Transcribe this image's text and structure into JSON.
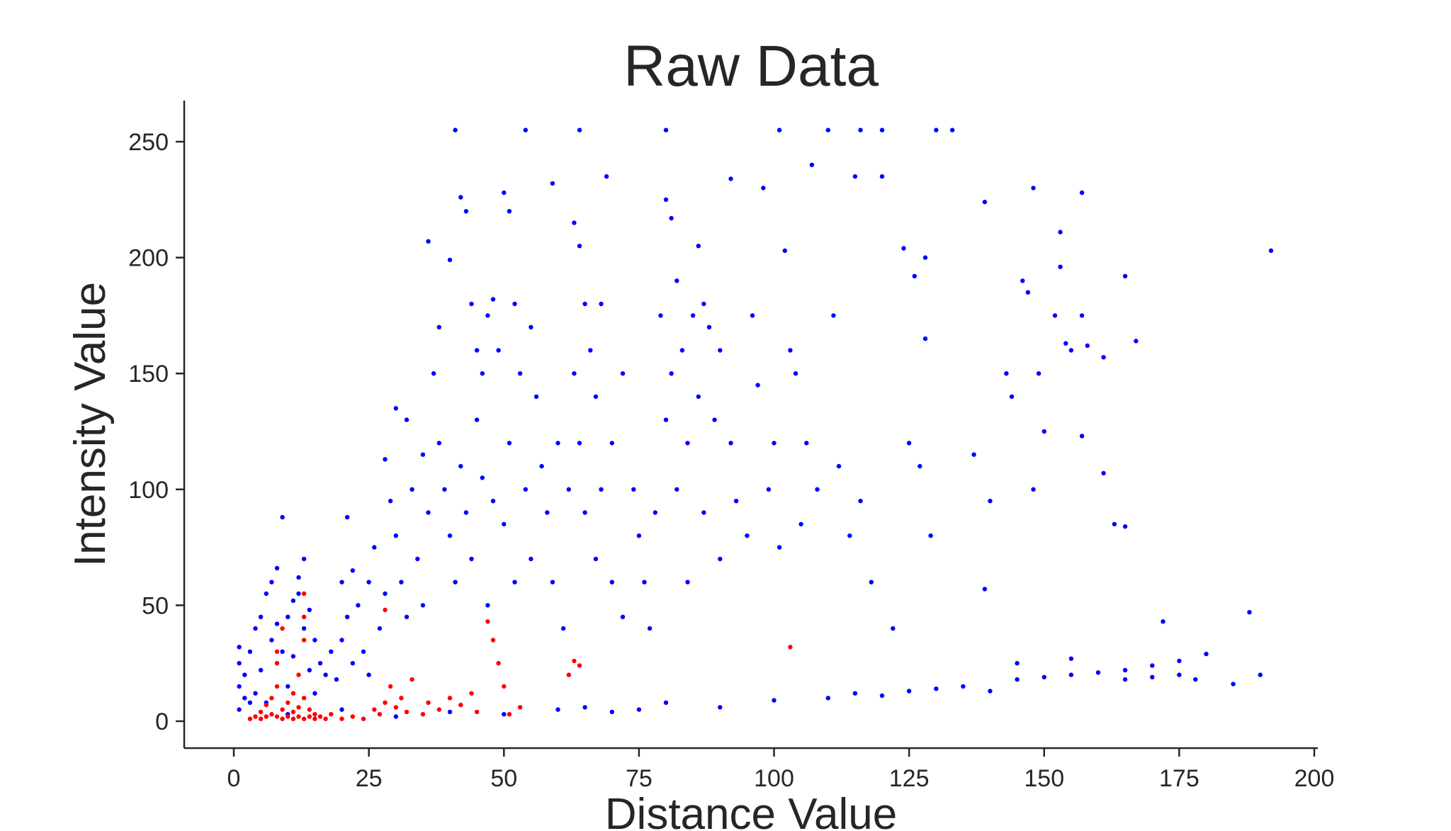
{
  "chart_data": {
    "type": "scatter",
    "title": "Raw Data",
    "xlabel": "Distance Value",
    "ylabel": "Intensity Value",
    "xlim": [
      -9,
      201
    ],
    "ylim": [
      -12,
      268
    ],
    "x_ticks": [
      0,
      25,
      50,
      75,
      100,
      125,
      150,
      175,
      200
    ],
    "y_ticks": [
      0,
      50,
      100,
      150,
      200,
      250
    ],
    "x_tick_labels": [
      "0",
      "25",
      "50",
      "75",
      "100",
      "125",
      "150",
      "175",
      "200"
    ],
    "y_tick_labels": [
      "0",
      "50",
      "100",
      "150",
      "200",
      "250"
    ],
    "grid": false,
    "legend": "none",
    "colors": {
      "series_blue": "#0000ff",
      "series_red": "#ff0000",
      "axis": "#262626"
    },
    "series": [
      {
        "name": "blue",
        "color": "#0000ff",
        "note": "dense point cloud; representative sample of visible points (distance, intensity)",
        "points": [
          [
            1,
            5
          ],
          [
            1,
            15
          ],
          [
            1,
            25
          ],
          [
            1,
            32
          ],
          [
            2,
            10
          ],
          [
            2,
            20
          ],
          [
            3,
            8
          ],
          [
            3,
            30
          ],
          [
            4,
            40
          ],
          [
            4,
            12
          ],
          [
            5,
            45
          ],
          [
            5,
            22
          ],
          [
            6,
            55
          ],
          [
            6,
            8
          ],
          [
            7,
            60
          ],
          [
            7,
            35
          ],
          [
            8,
            66
          ],
          [
            8,
            42
          ],
          [
            9,
            88
          ],
          [
            9,
            30
          ],
          [
            10,
            45
          ],
          [
            10,
            15
          ],
          [
            11,
            52
          ],
          [
            11,
            28
          ],
          [
            12,
            55
          ],
          [
            12,
            62
          ],
          [
            13,
            70
          ],
          [
            13,
            40
          ],
          [
            14,
            48
          ],
          [
            14,
            22
          ],
          [
            15,
            35
          ],
          [
            15,
            12
          ],
          [
            16,
            25
          ],
          [
            17,
            20
          ],
          [
            18,
            30
          ],
          [
            19,
            18
          ],
          [
            20,
            60
          ],
          [
            20,
            35
          ],
          [
            21,
            88
          ],
          [
            21,
            45
          ],
          [
            22,
            65
          ],
          [
            22,
            25
          ],
          [
            23,
            50
          ],
          [
            24,
            30
          ],
          [
            25,
            60
          ],
          [
            25,
            20
          ],
          [
            26,
            75
          ],
          [
            27,
            40
          ],
          [
            28,
            113
          ],
          [
            28,
            55
          ],
          [
            29,
            95
          ],
          [
            30,
            135
          ],
          [
            30,
            80
          ],
          [
            31,
            60
          ],
          [
            32,
            130
          ],
          [
            32,
            45
          ],
          [
            33,
            100
          ],
          [
            34,
            70
          ],
          [
            35,
            115
          ],
          [
            35,
            50
          ],
          [
            36,
            207
          ],
          [
            36,
            90
          ],
          [
            37,
            150
          ],
          [
            38,
            170
          ],
          [
            38,
            120
          ],
          [
            39,
            100
          ],
          [
            40,
            199
          ],
          [
            40,
            80
          ],
          [
            41,
            255
          ],
          [
            41,
            60
          ],
          [
            42,
            226
          ],
          [
            42,
            110
          ],
          [
            43,
            220
          ],
          [
            43,
            90
          ],
          [
            44,
            180
          ],
          [
            44,
            70
          ],
          [
            45,
            160
          ],
          [
            45,
            130
          ],
          [
            46,
            150
          ],
          [
            46,
            105
          ],
          [
            47,
            175
          ],
          [
            47,
            50
          ],
          [
            48,
            182
          ],
          [
            48,
            95
          ],
          [
            49,
            160
          ],
          [
            50,
            228
          ],
          [
            50,
            85
          ],
          [
            51,
            220
          ],
          [
            51,
            120
          ],
          [
            52,
            180
          ],
          [
            52,
            60
          ],
          [
            53,
            150
          ],
          [
            54,
            255
          ],
          [
            54,
            100
          ],
          [
            55,
            170
          ],
          [
            55,
            70
          ],
          [
            56,
            140
          ],
          [
            57,
            110
          ],
          [
            58,
            90
          ],
          [
            59,
            232
          ],
          [
            59,
            60
          ],
          [
            60,
            120
          ],
          [
            61,
            40
          ],
          [
            62,
            100
          ],
          [
            63,
            215
          ],
          [
            63,
            150
          ],
          [
            64,
            205
          ],
          [
            64,
            255
          ],
          [
            64,
            120
          ],
          [
            65,
            180
          ],
          [
            65,
            90
          ],
          [
            66,
            160
          ],
          [
            67,
            140
          ],
          [
            67,
            70
          ],
          [
            68,
            180
          ],
          [
            68,
            100
          ],
          [
            69,
            235
          ],
          [
            70,
            120
          ],
          [
            70,
            60
          ],
          [
            72,
            150
          ],
          [
            72,
            45
          ],
          [
            74,
            100
          ],
          [
            75,
            80
          ],
          [
            76,
            60
          ],
          [
            77,
            40
          ],
          [
            78,
            90
          ],
          [
            79,
            175
          ],
          [
            80,
            225
          ],
          [
            80,
            255
          ],
          [
            80,
            130
          ],
          [
            81,
            217
          ],
          [
            81,
            150
          ],
          [
            82,
            190
          ],
          [
            82,
            100
          ],
          [
            83,
            160
          ],
          [
            84,
            120
          ],
          [
            84,
            60
          ],
          [
            85,
            175
          ],
          [
            86,
            205
          ],
          [
            86,
            140
          ],
          [
            87,
            180
          ],
          [
            87,
            90
          ],
          [
            88,
            170
          ],
          [
            89,
            130
          ],
          [
            90,
            160
          ],
          [
            90,
            70
          ],
          [
            92,
            120
          ],
          [
            92,
            234
          ],
          [
            93,
            95
          ],
          [
            95,
            80
          ],
          [
            96,
            175
          ],
          [
            97,
            145
          ],
          [
            98,
            230
          ],
          [
            99,
            100
          ],
          [
            100,
            120
          ],
          [
            101,
            255
          ],
          [
            101,
            75
          ],
          [
            102,
            203
          ],
          [
            103,
            160
          ],
          [
            104,
            150
          ],
          [
            105,
            85
          ],
          [
            106,
            120
          ],
          [
            107,
            240
          ],
          [
            108,
            100
          ],
          [
            110,
            255
          ],
          [
            111,
            175
          ],
          [
            112,
            110
          ],
          [
            114,
            80
          ],
          [
            115,
            235
          ],
          [
            116,
            255
          ],
          [
            116,
            95
          ],
          [
            118,
            60
          ],
          [
            120,
            235
          ],
          [
            120,
            255
          ],
          [
            122,
            40
          ],
          [
            124,
            204
          ],
          [
            125,
            120
          ],
          [
            126,
            192
          ],
          [
            127,
            110
          ],
          [
            128,
            200
          ],
          [
            128,
            165
          ],
          [
            129,
            80
          ],
          [
            130,
            255
          ],
          [
            133,
            255
          ],
          [
            137,
            115
          ],
          [
            139,
            57
          ],
          [
            139,
            224
          ],
          [
            140,
            95
          ],
          [
            143,
            150
          ],
          [
            144,
            140
          ],
          [
            146,
            190
          ],
          [
            147,
            185
          ],
          [
            148,
            230
          ],
          [
            148,
            100
          ],
          [
            149,
            150
          ],
          [
            150,
            125
          ],
          [
            152,
            175
          ],
          [
            153,
            211
          ],
          [
            153,
            196
          ],
          [
            154,
            163
          ],
          [
            155,
            160
          ],
          [
            157,
            228
          ],
          [
            157,
            175
          ],
          [
            157,
            123
          ],
          [
            158,
            162
          ],
          [
            161,
            157
          ],
          [
            161,
            107
          ],
          [
            163,
            85
          ],
          [
            165,
            192
          ],
          [
            165,
            84
          ],
          [
            167,
            164
          ],
          [
            172,
            43
          ],
          [
            175,
            26
          ],
          [
            178,
            18
          ],
          [
            180,
            29
          ],
          [
            185,
            16
          ],
          [
            188,
            47
          ],
          [
            190,
            20
          ],
          [
            192,
            203
          ],
          [
            10,
            3
          ],
          [
            20,
            5
          ],
          [
            30,
            2
          ],
          [
            40,
            4
          ],
          [
            50,
            3
          ],
          [
            60,
            5
          ],
          [
            65,
            6
          ],
          [
            70,
            4
          ],
          [
            75,
            5
          ],
          [
            80,
            8
          ],
          [
            90,
            6
          ],
          [
            100,
            9
          ],
          [
            110,
            10
          ],
          [
            115,
            12
          ],
          [
            120,
            11
          ],
          [
            125,
            13
          ],
          [
            130,
            14
          ],
          [
            135,
            15
          ],
          [
            140,
            13
          ],
          [
            145,
            18
          ],
          [
            150,
            19
          ],
          [
            155,
            20
          ],
          [
            160,
            21
          ],
          [
            165,
            22
          ],
          [
            170,
            19
          ],
          [
            175,
            20
          ],
          [
            145,
            25
          ],
          [
            155,
            27
          ],
          [
            165,
            18
          ],
          [
            170,
            24
          ]
        ]
      },
      {
        "name": "red",
        "color": "#ff0000",
        "note": "subset highlighted in red, concentrated at low distance / low intensity",
        "points": [
          [
            3,
            1
          ],
          [
            4,
            2
          ],
          [
            5,
            1
          ],
          [
            5,
            4
          ],
          [
            6,
            2
          ],
          [
            6,
            7
          ],
          [
            7,
            3
          ],
          [
            7,
            10
          ],
          [
            8,
            2
          ],
          [
            8,
            15
          ],
          [
            8,
            25
          ],
          [
            8,
            30
          ],
          [
            9,
            1
          ],
          [
            9,
            5
          ],
          [
            9,
            40
          ],
          [
            10,
            2
          ],
          [
            10,
            8
          ],
          [
            11,
            1
          ],
          [
            11,
            4
          ],
          [
            11,
            12
          ],
          [
            12,
            2
          ],
          [
            12,
            6
          ],
          [
            12,
            20
          ],
          [
            13,
            1
          ],
          [
            13,
            10
          ],
          [
            13,
            35
          ],
          [
            13,
            55
          ],
          [
            13,
            45
          ],
          [
            14,
            2
          ],
          [
            14,
            5
          ],
          [
            15,
            1
          ],
          [
            15,
            3
          ],
          [
            16,
            2
          ],
          [
            17,
            1
          ],
          [
            18,
            3
          ],
          [
            20,
            1
          ],
          [
            22,
            2
          ],
          [
            24,
            1
          ],
          [
            26,
            5
          ],
          [
            27,
            3
          ],
          [
            28,
            8
          ],
          [
            28,
            48
          ],
          [
            29,
            15
          ],
          [
            30,
            6
          ],
          [
            31,
            10
          ],
          [
            32,
            4
          ],
          [
            33,
            18
          ],
          [
            35,
            3
          ],
          [
            36,
            8
          ],
          [
            38,
            5
          ],
          [
            40,
            10
          ],
          [
            42,
            7
          ],
          [
            44,
            12
          ],
          [
            45,
            4
          ],
          [
            47,
            43
          ],
          [
            48,
            35
          ],
          [
            49,
            25
          ],
          [
            50,
            15
          ],
          [
            51,
            3
          ],
          [
            53,
            6
          ],
          [
            62,
            20
          ],
          [
            63,
            26
          ],
          [
            64,
            24
          ],
          [
            103,
            32
          ]
        ]
      }
    ]
  }
}
